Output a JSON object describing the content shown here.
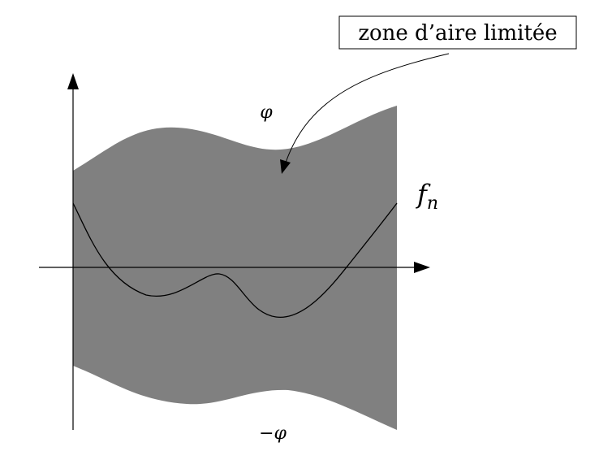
{
  "annotation": {
    "text": "zone d’aire limitée"
  },
  "labels": {
    "upper_bound": "φ",
    "lower_bound": "−φ",
    "function": "f",
    "function_subscript": "n"
  },
  "colors": {
    "region_fill": "#808080",
    "stroke": "#000000",
    "background": "#ffffff"
  }
}
